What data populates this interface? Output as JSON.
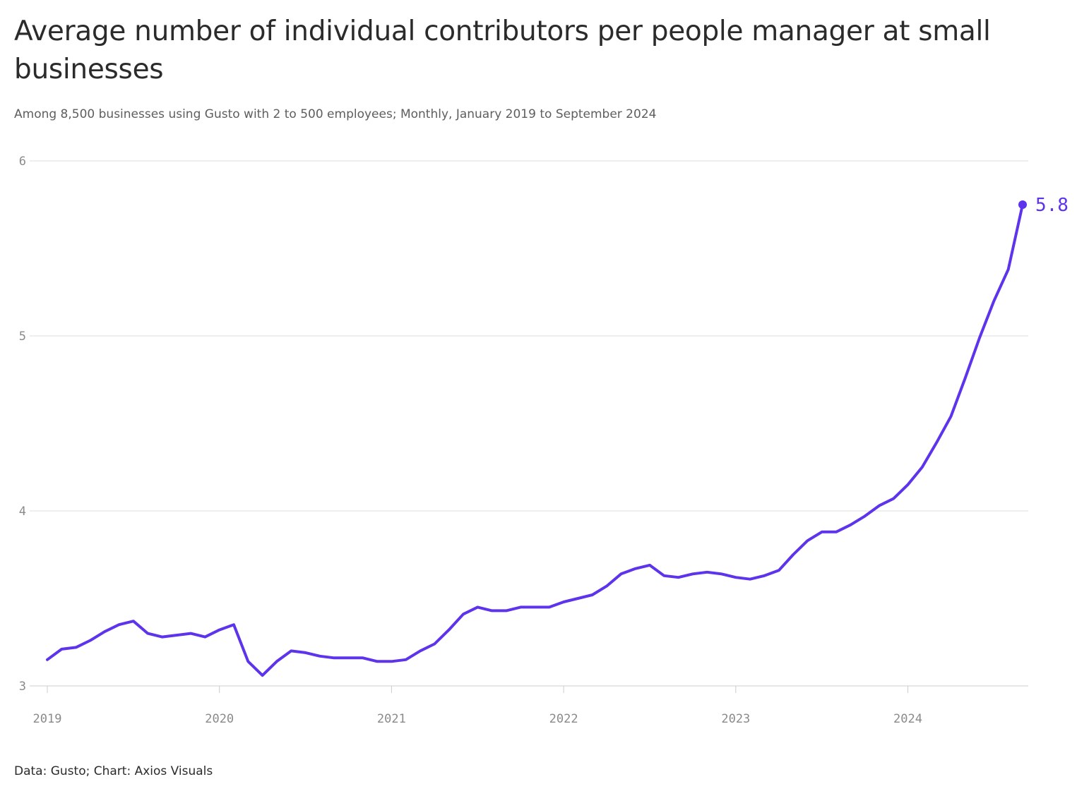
{
  "title": "Average number of individual contributors per people manager at small businesses",
  "subtitle": "Among 8,500 businesses using Gusto with 2 to 500 employees; Monthly, January 2019 to September 2024",
  "footer": "Data: Gusto; Chart: Axios Visuals",
  "colors": {
    "line": "#5d34ec",
    "grid": "#dddddd",
    "axis": "#cccccc"
  },
  "chart_data": {
    "type": "line",
    "title": "Average number of individual contributors per people manager at small businesses",
    "subtitle": "Among 8,500 businesses using Gusto with 2 to 500 employees; Monthly, January 2019 to September 2024",
    "xlabel": "",
    "ylabel": "",
    "ylim": [
      3,
      6
    ],
    "xlim": [
      "2019-01",
      "2024-09"
    ],
    "grid": true,
    "y_ticks": [
      "3",
      "4",
      "5",
      "6"
    ],
    "x_ticks": [
      "2019",
      "2020",
      "2021",
      "2022",
      "2023",
      "2024"
    ],
    "end_label": "5.8",
    "x": [
      "2019-01",
      "2019-02",
      "2019-03",
      "2019-04",
      "2019-05",
      "2019-06",
      "2019-07",
      "2019-08",
      "2019-09",
      "2019-10",
      "2019-11",
      "2019-12",
      "2020-01",
      "2020-02",
      "2020-03",
      "2020-04",
      "2020-05",
      "2020-06",
      "2020-07",
      "2020-08",
      "2020-09",
      "2020-10",
      "2020-11",
      "2020-12",
      "2021-01",
      "2021-02",
      "2021-03",
      "2021-04",
      "2021-05",
      "2021-06",
      "2021-07",
      "2021-08",
      "2021-09",
      "2021-10",
      "2021-11",
      "2021-12",
      "2022-01",
      "2022-02",
      "2022-03",
      "2022-04",
      "2022-05",
      "2022-06",
      "2022-07",
      "2022-08",
      "2022-09",
      "2022-10",
      "2022-11",
      "2022-12",
      "2023-01",
      "2023-02",
      "2023-03",
      "2023-04",
      "2023-05",
      "2023-06",
      "2023-07",
      "2023-08",
      "2023-09",
      "2023-10",
      "2023-11",
      "2023-12",
      "2024-01",
      "2024-02",
      "2024-03",
      "2024-04",
      "2024-05",
      "2024-06",
      "2024-07",
      "2024-08",
      "2024-09"
    ],
    "series": [
      {
        "values": [
          3.15,
          3.21,
          3.22,
          3.26,
          3.31,
          3.35,
          3.37,
          3.3,
          3.28,
          3.29,
          3.3,
          3.28,
          3.32,
          3.35,
          3.14,
          3.06,
          3.14,
          3.2,
          3.19,
          3.17,
          3.16,
          3.16,
          3.16,
          3.14,
          3.14,
          3.15,
          3.2,
          3.24,
          3.32,
          3.41,
          3.45,
          3.43,
          3.43,
          3.45,
          3.45,
          3.45,
          3.48,
          3.5,
          3.52,
          3.57,
          3.64,
          3.67,
          3.69,
          3.63,
          3.62,
          3.64,
          3.65,
          3.64,
          3.62,
          3.61,
          3.63,
          3.66,
          3.75,
          3.83,
          3.88,
          3.88,
          3.92,
          3.97,
          4.03,
          4.07,
          4.15,
          4.25,
          4.39,
          4.54,
          4.76,
          4.99,
          5.2,
          5.38,
          5.75
        ]
      }
    ]
  }
}
